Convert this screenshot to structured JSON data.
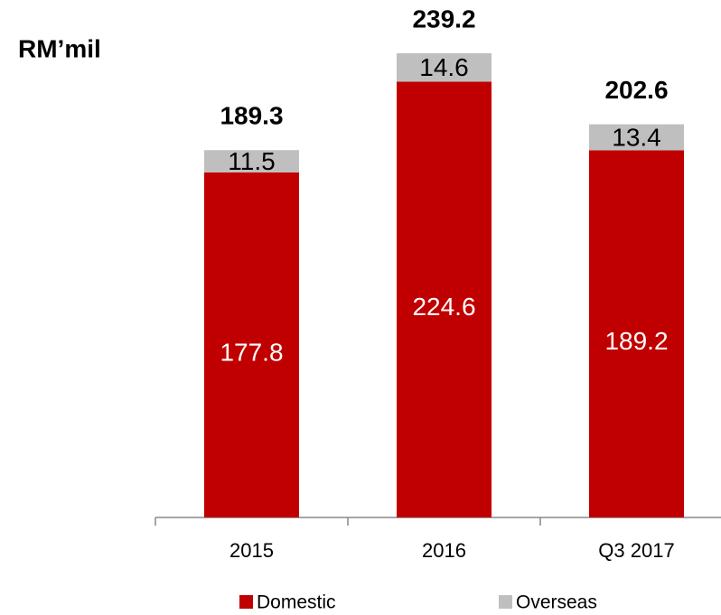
{
  "chart_data": {
    "type": "stacked-bar",
    "title": "RM’mil",
    "categories": [
      "2015",
      "2016",
      "Q3 2017"
    ],
    "series": [
      {
        "name": "Domestic",
        "color": "#c00000",
        "values": [
          177.8,
          224.6,
          189.2
        ]
      },
      {
        "name": "Overseas",
        "color": "#bfbfbf",
        "values": [
          11.5,
          14.6,
          13.4
        ]
      }
    ],
    "totals": [
      189.3,
      239.2,
      202.6
    ]
  }
}
